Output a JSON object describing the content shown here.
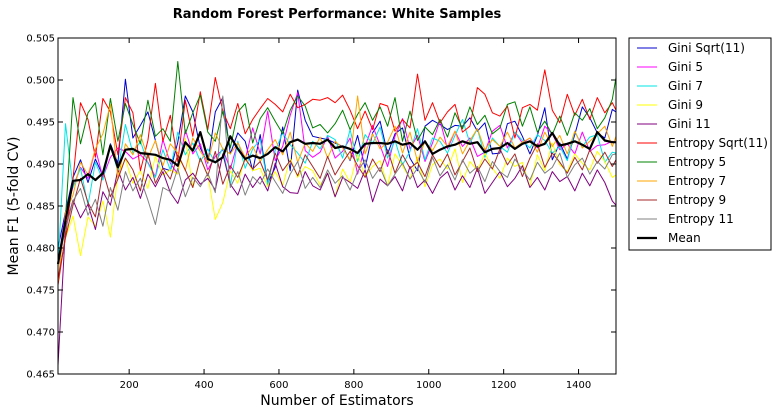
{
  "chart_data": {
    "type": "line",
    "title": "Random Forest Performance: White Samples",
    "xlabel": "Number of Estimators",
    "ylabel": "Mean F1 (5-fold CV)",
    "xlim": [
      10,
      1500
    ],
    "ylim": [
      0.465,
      0.505
    ],
    "xticks": [
      200,
      400,
      600,
      800,
      1000,
      1200,
      1400
    ],
    "xtick_labels": [
      "200",
      "400",
      "600",
      "800",
      "1000",
      "1200",
      "1400"
    ],
    "yticks": [
      0.465,
      0.47,
      0.475,
      0.48,
      0.485,
      0.49,
      0.495,
      0.5,
      0.505
    ],
    "ytick_labels": [
      "0.465",
      "0.470",
      "0.475",
      "0.480",
      "0.485",
      "0.490",
      "0.495",
      "0.500",
      "0.505"
    ],
    "grid": false,
    "legend_position": "outside-right",
    "x": [
      10,
      30,
      50,
      70,
      90,
      110,
      130,
      150,
      170,
      190,
      210,
      230,
      250,
      270,
      290,
      310,
      330,
      350,
      370,
      390,
      410,
      430,
      450,
      470,
      490,
      510,
      530,
      550,
      570,
      590,
      610,
      630,
      650,
      670,
      690,
      710,
      730,
      750,
      770,
      790,
      810,
      830,
      850,
      870,
      890,
      910,
      930,
      950,
      970,
      990,
      1010,
      1030,
      1050,
      1070,
      1090,
      1110,
      1130,
      1150,
      1170,
      1190,
      1210,
      1230,
      1250,
      1270,
      1290,
      1310,
      1330,
      1350,
      1370,
      1390,
      1410,
      1430,
      1450,
      1470,
      1490,
      1500
    ],
    "series": [
      {
        "name": "Gini Sqrt(11)",
        "color": "#0000cc",
        "width": 1,
        "values": [
          0.48,
          0.4843,
          0.4884,
          0.4905,
          0.4878,
          0.4906,
          0.4886,
          0.4924,
          0.4901,
          0.5001,
          0.4931,
          0.4946,
          0.4962,
          0.4928,
          0.4895,
          0.4892,
          0.4926,
          0.4981,
          0.4962,
          0.4919,
          0.4901,
          0.4962,
          0.4979,
          0.4912,
          0.4937,
          0.4927,
          0.4892,
          0.4935,
          0.4877,
          0.4896,
          0.4944,
          0.4892,
          0.4988,
          0.4952,
          0.4933,
          0.4931,
          0.4929,
          0.4925,
          0.4921,
          0.4904,
          0.4934,
          0.4895,
          0.4937,
          0.4951,
          0.4912,
          0.4936,
          0.4943,
          0.4907,
          0.4892,
          0.4945,
          0.4952,
          0.4947,
          0.4941,
          0.4946,
          0.4945,
          0.4955,
          0.4939,
          0.4949,
          0.4912,
          0.4913,
          0.4948,
          0.4951,
          0.4933,
          0.4912,
          0.4934,
          0.4967,
          0.4905,
          0.4925,
          0.4906,
          0.4935,
          0.4968,
          0.4955,
          0.4937,
          0.4931,
          0.4965,
          0.4962
        ]
      },
      {
        "name": "Gini 5",
        "color": "#ff00ff",
        "width": 1,
        "values": [
          0.4783,
          0.4841,
          0.4873,
          0.4896,
          0.4883,
          0.4918,
          0.4884,
          0.4908,
          0.4919,
          0.4915,
          0.4906,
          0.4911,
          0.4902,
          0.4885,
          0.4929,
          0.4901,
          0.4888,
          0.4941,
          0.4912,
          0.4924,
          0.4893,
          0.4909,
          0.4917,
          0.4894,
          0.4926,
          0.4905,
          0.4943,
          0.4912,
          0.4963,
          0.4904,
          0.4921,
          0.4958,
          0.4985,
          0.4916,
          0.4908,
          0.4914,
          0.4933,
          0.4907,
          0.4915,
          0.4931,
          0.4888,
          0.4921,
          0.4946,
          0.4922,
          0.4897,
          0.4933,
          0.4954,
          0.4918,
          0.4934,
          0.4903,
          0.4925,
          0.4952,
          0.4918,
          0.4939,
          0.4921,
          0.4931,
          0.4909,
          0.4914,
          0.4939,
          0.4946,
          0.4919,
          0.4938,
          0.4925,
          0.4931,
          0.4919,
          0.4945,
          0.4936,
          0.4917,
          0.4924,
          0.4912,
          0.4938,
          0.4915,
          0.4922,
          0.4923,
          0.4927,
          0.4925
        ]
      },
      {
        "name": "Gini 7",
        "color": "#00e5e5",
        "width": 1,
        "values": [
          0.4778,
          0.4948,
          0.4872,
          0.4895,
          0.4851,
          0.4902,
          0.4881,
          0.4923,
          0.4891,
          0.4947,
          0.4913,
          0.4927,
          0.4901,
          0.4884,
          0.4917,
          0.4893,
          0.4938,
          0.4911,
          0.4925,
          0.4903,
          0.4918,
          0.4901,
          0.4919,
          0.4874,
          0.4927,
          0.4895,
          0.4918,
          0.4929,
          0.4875,
          0.4916,
          0.4937,
          0.4923,
          0.4913,
          0.4901,
          0.4927,
          0.4918,
          0.4934,
          0.4929,
          0.4907,
          0.4941,
          0.4903,
          0.4935,
          0.4924,
          0.4944,
          0.4907,
          0.4928,
          0.4899,
          0.4915,
          0.4942,
          0.4905,
          0.4931,
          0.4927,
          0.4913,
          0.4934,
          0.4953,
          0.4925,
          0.4942,
          0.4908,
          0.4931,
          0.4921,
          0.4914,
          0.4938,
          0.4928,
          0.4919,
          0.4935,
          0.4928,
          0.4913,
          0.4921,
          0.4904,
          0.4939,
          0.4921,
          0.4932,
          0.4935,
          0.4902,
          0.4914,
          0.4913
        ]
      },
      {
        "name": "Gini 9",
        "color": "#ffff00",
        "width": 1,
        "values": [
          0.4762,
          0.4812,
          0.4838,
          0.4791,
          0.4837,
          0.4826,
          0.4856,
          0.4813,
          0.4888,
          0.4906,
          0.4877,
          0.4892,
          0.4871,
          0.4909,
          0.4887,
          0.4893,
          0.4888,
          0.4931,
          0.4872,
          0.4907,
          0.4887,
          0.4834,
          0.4854,
          0.4892,
          0.4877,
          0.4908,
          0.4892,
          0.4895,
          0.4873,
          0.4891,
          0.4874,
          0.4907,
          0.4884,
          0.4897,
          0.4892,
          0.4875,
          0.4889,
          0.4861,
          0.4894,
          0.4878,
          0.4912,
          0.4885,
          0.4897,
          0.4904,
          0.4874,
          0.4912,
          0.4898,
          0.4882,
          0.4908,
          0.4873,
          0.4899,
          0.4906,
          0.4894,
          0.4918,
          0.4878,
          0.4903,
          0.4892,
          0.4913,
          0.4895,
          0.4883,
          0.4907,
          0.4897,
          0.4902,
          0.4873,
          0.4911,
          0.4892,
          0.4925,
          0.4899,
          0.4891,
          0.4912,
          0.4901,
          0.4893,
          0.4915,
          0.4903,
          0.4884,
          0.4887
        ]
      },
      {
        "name": "Gini 11",
        "color": "#800080",
        "width": 1,
        "values": [
          0.466,
          0.4825,
          0.4857,
          0.4836,
          0.4852,
          0.4822,
          0.4867,
          0.4851,
          0.4893,
          0.4869,
          0.4884,
          0.4859,
          0.4888,
          0.4873,
          0.4891,
          0.4866,
          0.4853,
          0.4881,
          0.4889,
          0.4876,
          0.4883,
          0.4869,
          0.4912,
          0.4876,
          0.4863,
          0.4888,
          0.4872,
          0.4885,
          0.4868,
          0.4901,
          0.4873,
          0.4866,
          0.4865,
          0.4891,
          0.4874,
          0.4869,
          0.4889,
          0.4861,
          0.4884,
          0.4878,
          0.4871,
          0.4893,
          0.4855,
          0.4882,
          0.4874,
          0.4885,
          0.4868,
          0.4897,
          0.4872,
          0.4881,
          0.4865,
          0.4883,
          0.4891,
          0.4869,
          0.4886,
          0.4872,
          0.4895,
          0.4865,
          0.4878,
          0.4891,
          0.4873,
          0.4883,
          0.4898,
          0.4872,
          0.4884,
          0.4869,
          0.4891,
          0.4879,
          0.4885,
          0.4868,
          0.4889,
          0.4874,
          0.4893,
          0.4878,
          0.4856,
          0.4851
        ]
      },
      {
        "name": "Entropy Sqrt(11)",
        "color": "#ff0000",
        "width": 1,
        "values": [
          0.4756,
          0.4815,
          0.4882,
          0.4973,
          0.4953,
          0.4908,
          0.4978,
          0.4962,
          0.4911,
          0.4979,
          0.4961,
          0.4892,
          0.4928,
          0.4996,
          0.4927,
          0.4958,
          0.4903,
          0.4976,
          0.4933,
          0.4986,
          0.4941,
          0.5003,
          0.4963,
          0.4942,
          0.4972,
          0.4936,
          0.4953,
          0.4966,
          0.4978,
          0.4971,
          0.4962,
          0.4983,
          0.4967,
          0.4971,
          0.4977,
          0.4976,
          0.4979,
          0.4973,
          0.4982,
          0.4964,
          0.4942,
          0.4963,
          0.4941,
          0.4972,
          0.4969,
          0.4939,
          0.4953,
          0.4943,
          0.5007,
          0.4952,
          0.4973,
          0.4949,
          0.4962,
          0.4971,
          0.4938,
          0.4945,
          0.4991,
          0.4983,
          0.4961,
          0.4957,
          0.4969,
          0.4931,
          0.4967,
          0.4971,
          0.4964,
          0.5012,
          0.4964,
          0.4949,
          0.4983,
          0.4958,
          0.4977,
          0.4953,
          0.4979,
          0.4961,
          0.4973,
          0.4964
        ]
      },
      {
        "name": "Entropy 5",
        "color": "#008000",
        "width": 1,
        "values": [
          0.4782,
          0.4836,
          0.4979,
          0.4924,
          0.4961,
          0.4973,
          0.4911,
          0.4978,
          0.4927,
          0.4972,
          0.4947,
          0.4924,
          0.4976,
          0.4933,
          0.4942,
          0.4927,
          0.5022,
          0.4936,
          0.4961,
          0.4982,
          0.4938,
          0.4927,
          0.4963,
          0.4919,
          0.4962,
          0.4972,
          0.4925,
          0.4954,
          0.4967,
          0.4951,
          0.4936,
          0.4964,
          0.4981,
          0.4969,
          0.4943,
          0.4947,
          0.4937,
          0.4948,
          0.4964,
          0.4941,
          0.4959,
          0.4973,
          0.4952,
          0.4968,
          0.4945,
          0.4979,
          0.4927,
          0.4963,
          0.4928,
          0.4944,
          0.4935,
          0.4953,
          0.4932,
          0.4961,
          0.4942,
          0.4968,
          0.4947,
          0.4958,
          0.4936,
          0.4943,
          0.4971,
          0.4974,
          0.4945,
          0.4968,
          0.4938,
          0.4951,
          0.4935,
          0.4957,
          0.4934,
          0.4961,
          0.4952,
          0.4966,
          0.4942,
          0.4955,
          0.4977,
          0.5003
        ]
      },
      {
        "name": "Entropy 7",
        "color": "#ffa500",
        "width": 1,
        "values": [
          0.4759,
          0.4842,
          0.4863,
          0.4902,
          0.4887,
          0.4918,
          0.4936,
          0.4971,
          0.4883,
          0.4924,
          0.4911,
          0.4935,
          0.4907,
          0.4928,
          0.4898,
          0.4924,
          0.4913,
          0.4892,
          0.4931,
          0.4915,
          0.4902,
          0.4937,
          0.4918,
          0.4912,
          0.4925,
          0.4908,
          0.4921,
          0.4903,
          0.4917,
          0.4929,
          0.4911,
          0.4938,
          0.4902,
          0.4925,
          0.4915,
          0.4932,
          0.4907,
          0.4927,
          0.4919,
          0.4905,
          0.4981,
          0.4912,
          0.4936,
          0.4918,
          0.4926,
          0.4945,
          0.4913,
          0.4938,
          0.4903,
          0.4927,
          0.4916,
          0.4932,
          0.4921,
          0.4939,
          0.4912,
          0.4928,
          0.4942,
          0.4917,
          0.4929,
          0.4921,
          0.4938,
          0.4919,
          0.4926,
          0.4931,
          0.4914,
          0.4938,
          0.4921,
          0.4934,
          0.4912,
          0.4939,
          0.4919,
          0.4927,
          0.4936,
          0.4945,
          0.4921,
          0.4933
        ]
      },
      {
        "name": "Entropy 9",
        "color": "#a52a2a",
        "width": 1,
        "values": [
          0.4763,
          0.4812,
          0.4851,
          0.4883,
          0.4854,
          0.4837,
          0.4892,
          0.4861,
          0.4882,
          0.4907,
          0.4893,
          0.4868,
          0.4913,
          0.4877,
          0.4895,
          0.4882,
          0.4911,
          0.4893,
          0.4872,
          0.4907,
          0.4886,
          0.4915,
          0.4876,
          0.4898,
          0.4884,
          0.4906,
          0.4894,
          0.4903,
          0.4881,
          0.4913,
          0.4892,
          0.4904,
          0.4886,
          0.4911,
          0.4897,
          0.4883,
          0.4909,
          0.4887,
          0.4902,
          0.4915,
          0.4898,
          0.4884,
          0.4906,
          0.4891,
          0.4917,
          0.4889,
          0.4911,
          0.4895,
          0.4902,
          0.4885,
          0.4911,
          0.4896,
          0.4912,
          0.4887,
          0.4903,
          0.4919,
          0.4891,
          0.4906,
          0.4894,
          0.4918,
          0.4899,
          0.4912,
          0.4885,
          0.4907,
          0.4924,
          0.4896,
          0.4913,
          0.4902,
          0.4889,
          0.4908,
          0.4893,
          0.4917,
          0.4901,
          0.4914,
          0.4897,
          0.4905
        ]
      },
      {
        "name": "Entropy 11",
        "color": "#808080",
        "width": 1,
        "values": [
          0.4781,
          0.4822,
          0.4856,
          0.4871,
          0.4839,
          0.4858,
          0.4826,
          0.4872,
          0.4845,
          0.4891,
          0.4868,
          0.4883,
          0.4857,
          0.4828,
          0.4872,
          0.4867,
          0.4895,
          0.4861,
          0.4884,
          0.4873,
          0.4889,
          0.4866,
          0.4981,
          0.4872,
          0.4891,
          0.4863,
          0.4885,
          0.4876,
          0.4894,
          0.4879,
          0.4865,
          0.4888,
          0.4903,
          0.4871,
          0.4884,
          0.4872,
          0.4893,
          0.4877,
          0.4886,
          0.4869,
          0.4891,
          0.4905,
          0.4883,
          0.4896,
          0.4874,
          0.4888,
          0.4901,
          0.4882,
          0.4895,
          0.4878,
          0.4908,
          0.4886,
          0.4899,
          0.4881,
          0.4905,
          0.4889,
          0.4897,
          0.4879,
          0.4903,
          0.4891,
          0.4884,
          0.4906,
          0.4893,
          0.4881,
          0.4902,
          0.4889,
          0.4896,
          0.4913,
          0.4884,
          0.4899,
          0.4907,
          0.4888,
          0.4903,
          0.4894,
          0.4911,
          0.4912
        ]
      },
      {
        "name": "Mean",
        "color": "#000000",
        "width": 2.2,
        "values": [
          0.4781,
          0.4833,
          0.488,
          0.4881,
          0.4888,
          0.4881,
          0.4889,
          0.4922,
          0.4896,
          0.4917,
          0.4918,
          0.4913,
          0.4912,
          0.4911,
          0.4907,
          0.4905,
          0.4898,
          0.4926,
          0.4916,
          0.4938,
          0.4906,
          0.4902,
          0.4908,
          0.4933,
          0.4918,
          0.4906,
          0.491,
          0.4907,
          0.4912,
          0.492,
          0.4915,
          0.4926,
          0.4929,
          0.4924,
          0.4925,
          0.4924,
          0.4929,
          0.4919,
          0.4921,
          0.4918,
          0.4913,
          0.4924,
          0.4925,
          0.4925,
          0.4924,
          0.4927,
          0.4923,
          0.4925,
          0.4917,
          0.4927,
          0.4912,
          0.4917,
          0.4921,
          0.4923,
          0.4927,
          0.4924,
          0.4926,
          0.4914,
          0.4918,
          0.4919,
          0.4925,
          0.4918,
          0.4924,
          0.4927,
          0.4921,
          0.4924,
          0.4937,
          0.4922,
          0.4924,
          0.4927,
          0.4923,
          0.4918,
          0.4938,
          0.4928,
          0.4926,
          0.4926
        ]
      }
    ]
  }
}
